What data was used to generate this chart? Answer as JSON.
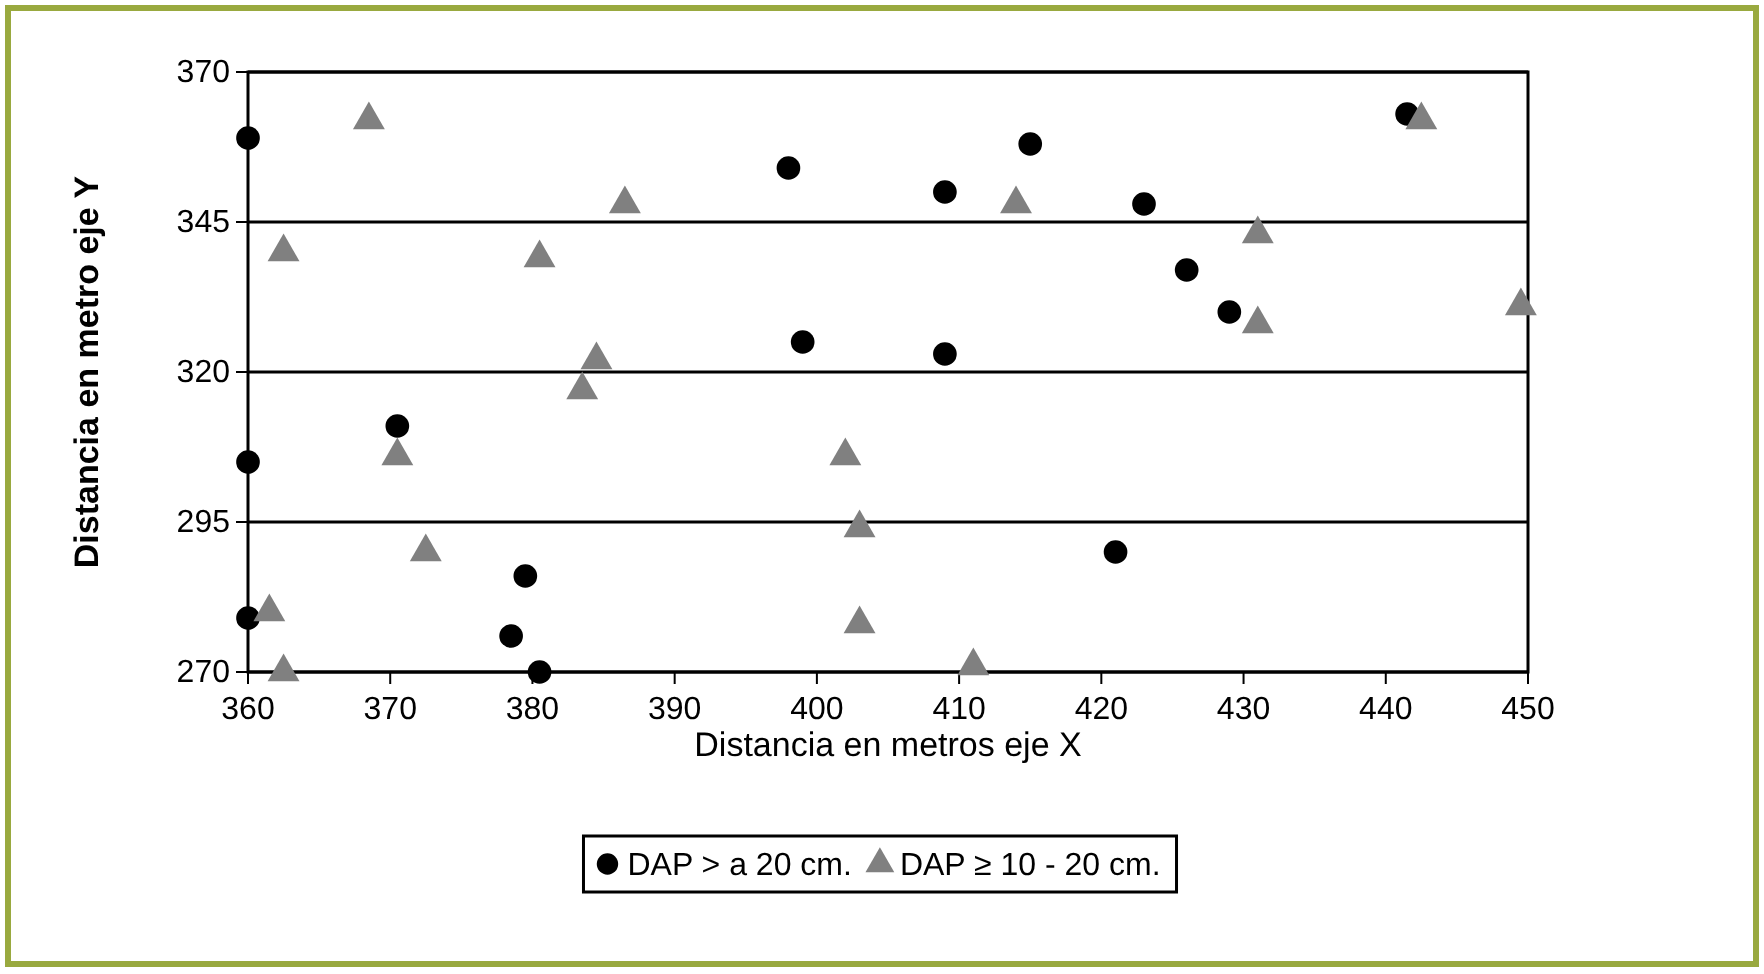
{
  "chart_data": {
    "type": "scatter",
    "xlabel": "Distancia en metros  eje X",
    "ylabel": "Distancia en metro eje Y",
    "xlim": [
      360,
      450
    ],
    "xticks": [
      360,
      370,
      380,
      390,
      400,
      410,
      420,
      430,
      440,
      450
    ],
    "ylim": [
      270,
      370
    ],
    "yticks": [
      270,
      295,
      320,
      345,
      370
    ],
    "grid": "y",
    "legend": "bottom",
    "series": [
      {
        "name": "DAP > a 20 cm.",
        "color": "#000000",
        "marker": "circle",
        "x": [
          360,
          360,
          360,
          370.5,
          379.5,
          378.5,
          380.5,
          398,
          399,
          409,
          409,
          415,
          423,
          426,
          429,
          421,
          441.5
        ],
        "values": [
          359,
          305,
          279,
          311,
          286,
          276,
          270,
          354,
          325,
          350,
          323,
          358,
          348,
          337,
          330,
          290,
          363
        ]
      },
      {
        "name": "DAP ≥ 10 - 20 cm.",
        "color": "#808080",
        "marker": "triangle",
        "x": [
          361.5,
          362.5,
          362.5,
          368.5,
          370.5,
          372.5,
          380.5,
          383.5,
          384.5,
          386.5,
          402,
          403,
          403,
          411,
          414,
          431,
          431,
          442.5,
          449.5
        ],
        "values": [
          280,
          270,
          340,
          362,
          306,
          290,
          339,
          317,
          322,
          348,
          306,
          294,
          278,
          271,
          348,
          343,
          328,
          362,
          331
        ]
      }
    ]
  }
}
